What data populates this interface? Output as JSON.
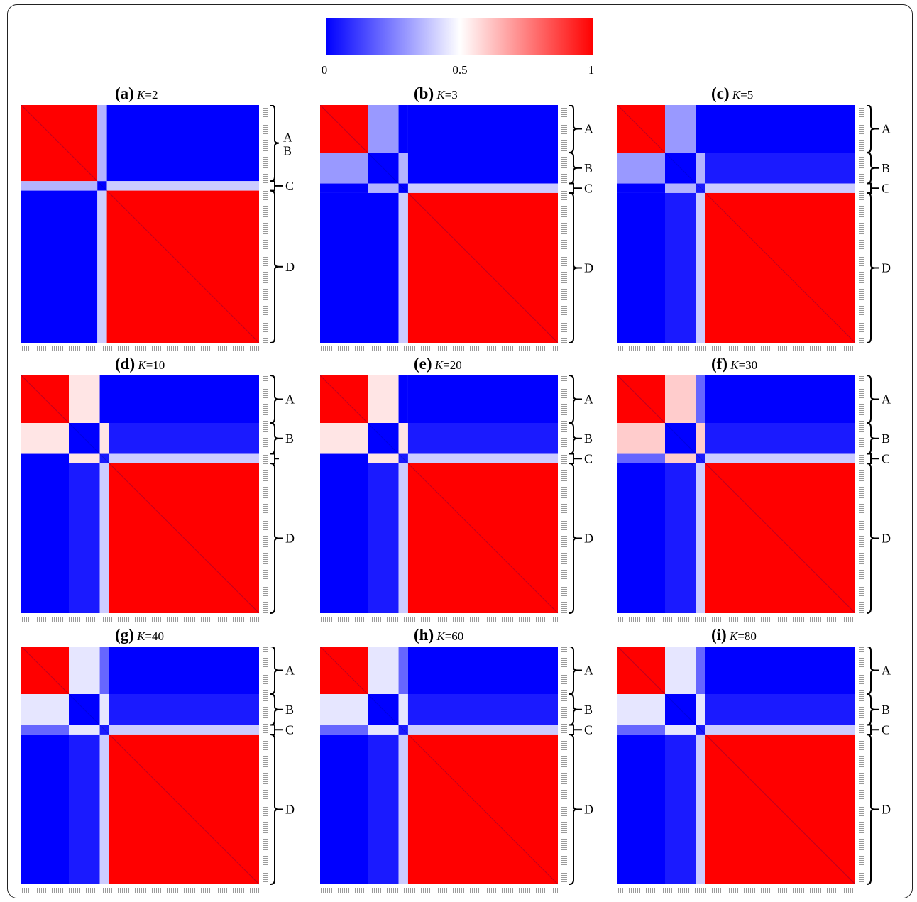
{
  "colorbar": {
    "colors": [
      "#0000ff",
      "#ffffff",
      "#ff0000"
    ],
    "ticks": [
      {
        "value": 0,
        "label": "0"
      },
      {
        "value": 0.5,
        "label": "0.5"
      },
      {
        "value": 1,
        "label": "1"
      }
    ]
  },
  "chart_data": [
    {
      "type": "heatmap",
      "panel": "(a)",
      "k_label": "K=2",
      "clusters": [
        "A",
        "B",
        "C",
        "D"
      ],
      "cluster_sizes": [
        32,
        0,
        4,
        64
      ],
      "block_values": [
        [
          1.0,
          0.0,
          0.35,
          0.0
        ],
        [
          0.0,
          1.0,
          0.0,
          0.0
        ],
        [
          0.35,
          0.0,
          0.0,
          0.4
        ],
        [
          0.0,
          0.0,
          0.4,
          1.0
        ]
      ],
      "brackets": [
        "A",
        "B",
        "C",
        "D"
      ]
    },
    {
      "type": "heatmap",
      "panel": "(b)",
      "k_label": "K=3",
      "clusters": [
        "A",
        "B",
        "C",
        "D"
      ],
      "cluster_sizes": [
        20,
        13,
        4,
        63
      ],
      "block_values": [
        [
          1.0,
          0.3,
          0.0,
          0.0
        ],
        [
          0.3,
          0.0,
          0.35,
          0.0
        ],
        [
          0.0,
          0.35,
          0.0,
          0.4
        ],
        [
          0.0,
          0.0,
          0.4,
          1.0
        ]
      ],
      "brackets": [
        "A",
        "B",
        "C",
        "D"
      ]
    },
    {
      "type": "heatmap",
      "panel": "(c)",
      "k_label": "K=5",
      "clusters": [
        "A",
        "B",
        "C",
        "D"
      ],
      "cluster_sizes": [
        20,
        13,
        4,
        63
      ],
      "block_values": [
        [
          1.0,
          0.3,
          0.0,
          0.0
        ],
        [
          0.3,
          0.0,
          0.35,
          0.05
        ],
        [
          0.0,
          0.35,
          0.05,
          0.4
        ],
        [
          0.0,
          0.05,
          0.4,
          1.0
        ]
      ],
      "brackets": [
        "A",
        "B",
        "C",
        "D"
      ]
    },
    {
      "type": "heatmap",
      "panel": "(d)",
      "k_label": "K=10",
      "clusters": [
        "A",
        "B",
        "C",
        "D"
      ],
      "cluster_sizes": [
        20,
        13,
        4,
        63
      ],
      "block_values": [
        [
          1.0,
          0.55,
          0.0,
          0.0
        ],
        [
          0.55,
          0.0,
          0.55,
          0.05
        ],
        [
          0.0,
          0.55,
          0.05,
          0.4
        ],
        [
          0.0,
          0.05,
          0.4,
          1.0
        ]
      ],
      "brackets": [
        "A",
        "B",
        "",
        "D"
      ]
    },
    {
      "type": "heatmap",
      "panel": "(e)",
      "k_label": "K=20",
      "clusters": [
        "A",
        "B",
        "C",
        "D"
      ],
      "cluster_sizes": [
        20,
        13,
        4,
        63
      ],
      "block_values": [
        [
          1.0,
          0.55,
          0.0,
          0.0
        ],
        [
          0.55,
          0.0,
          0.55,
          0.05
        ],
        [
          0.0,
          0.55,
          0.05,
          0.4
        ],
        [
          0.0,
          0.05,
          0.4,
          1.0
        ]
      ],
      "brackets": [
        "A",
        "B",
        "C",
        "D"
      ]
    },
    {
      "type": "heatmap",
      "panel": "(f)",
      "k_label": "K=30",
      "clusters": [
        "A",
        "B",
        "C",
        "D"
      ],
      "cluster_sizes": [
        20,
        13,
        4,
        63
      ],
      "block_values": [
        [
          1.0,
          0.6,
          0.2,
          0.0
        ],
        [
          0.6,
          0.0,
          0.6,
          0.05
        ],
        [
          0.2,
          0.6,
          0.05,
          0.4
        ],
        [
          0.0,
          0.05,
          0.4,
          1.0
        ]
      ],
      "brackets": [
        "A",
        "B",
        "C",
        "D"
      ]
    },
    {
      "type": "heatmap",
      "panel": "(g)",
      "k_label": "K=40",
      "clusters": [
        "A",
        "B",
        "C",
        "D"
      ],
      "cluster_sizes": [
        20,
        13,
        4,
        63
      ],
      "block_values": [
        [
          1.0,
          0.45,
          0.2,
          0.0
        ],
        [
          0.45,
          0.0,
          0.45,
          0.05
        ],
        [
          0.2,
          0.45,
          0.05,
          0.4
        ],
        [
          0.0,
          0.05,
          0.4,
          1.0
        ]
      ],
      "brackets": [
        "A",
        "B",
        "C",
        "D"
      ]
    },
    {
      "type": "heatmap",
      "panel": "(h)",
      "k_label": "K=60",
      "clusters": [
        "A",
        "B",
        "C",
        "D"
      ],
      "cluster_sizes": [
        20,
        13,
        4,
        63
      ],
      "block_values": [
        [
          1.0,
          0.45,
          0.2,
          0.0
        ],
        [
          0.45,
          0.0,
          0.45,
          0.05
        ],
        [
          0.2,
          0.45,
          0.05,
          0.4
        ],
        [
          0.0,
          0.05,
          0.4,
          1.0
        ]
      ],
      "brackets": [
        "A",
        "B",
        "C",
        "D"
      ]
    },
    {
      "type": "heatmap",
      "panel": "(i)",
      "k_label": "K=80",
      "clusters": [
        "A",
        "B",
        "C",
        "D"
      ],
      "cluster_sizes": [
        20,
        13,
        4,
        63
      ],
      "block_values": [
        [
          1.0,
          0.45,
          0.2,
          0.0
        ],
        [
          0.45,
          0.0,
          0.45,
          0.05
        ],
        [
          0.2,
          0.45,
          0.05,
          0.4
        ],
        [
          0.0,
          0.05,
          0.4,
          1.0
        ]
      ],
      "brackets": [
        "A",
        "B",
        "C",
        "D"
      ]
    }
  ]
}
